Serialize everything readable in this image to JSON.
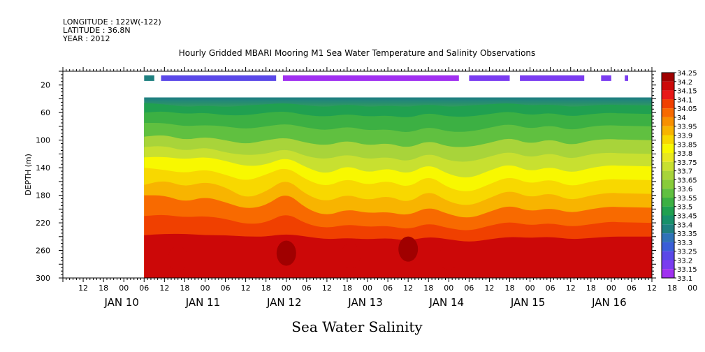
{
  "header": {
    "longitude": "LONGITUDE : 122W(-122)",
    "latitude": "LATITUDE : 36.8N",
    "year": "YEAR : 2012",
    "title": "Hourly Gridded MBARI Mooring M1 Sea Water Temperature and Salinity Observations"
  },
  "chart_data": {
    "type": "heatmap",
    "title": "Hourly Gridded MBARI Mooring M1 Sea Water Temperature and Salinity Observations",
    "xlabel": "Sea Water Salinity",
    "ylabel": "DEPTH (m)",
    "x_hour_ticks": [
      "12",
      "18",
      "00",
      "06",
      "12",
      "18",
      "00",
      "06",
      "12",
      "18",
      "00",
      "06",
      "12",
      "18",
      "00",
      "06",
      "12",
      "18",
      "00",
      "06",
      "12",
      "18",
      "00",
      "06",
      "12",
      "18",
      "00",
      "06",
      "12",
      "18",
      "00"
    ],
    "x_day_labels": [
      "JAN 10",
      "JAN 11",
      "JAN 12",
      "JAN 13",
      "JAN 14",
      "JAN 15",
      "JAN 16"
    ],
    "y_ticks": [
      20,
      60,
      100,
      140,
      180,
      220,
      260,
      300
    ],
    "ylim": [
      300,
      0
    ],
    "colorbar_levels": [
      "33.1",
      "33.15",
      "33.2",
      "33.25",
      "33.3",
      "33.35",
      "33.4",
      "33.45",
      "33.5",
      "33.55",
      "33.6",
      "33.65",
      "33.7",
      "33.75",
      "33.8",
      "33.85",
      "33.9",
      "33.95",
      "34",
      "34.05",
      "34.1",
      "34.15",
      "34.2",
      "34.25"
    ],
    "colorbar_colors": [
      "#e020e0",
      "#a030f0",
      "#7a3cf0",
      "#5a48e8",
      "#3a5ed8",
      "#2f72b8",
      "#1f8080",
      "#18906a",
      "#20a050",
      "#3cb043",
      "#60c040",
      "#88cc3a",
      "#a8d43a",
      "#c8e030",
      "#e8e820",
      "#f8f800",
      "#f8d800",
      "#f8b400",
      "#f89000",
      "#f86a00",
      "#f04000",
      "#e81818",
      "#cc0808",
      "#a00000"
    ],
    "surface_band": {
      "depth": 10,
      "segments": [
        {
          "start_hour": 30,
          "end_hour": 33,
          "value": 33.4
        },
        {
          "start_hour": 35,
          "end_hour": 69,
          "value": 33.25
        },
        {
          "start_hour": 71,
          "end_hour": 123,
          "value": 33.15
        },
        {
          "start_hour": 126,
          "end_hour": 138,
          "value": 33.2
        },
        {
          "start_hour": 141,
          "end_hour": 160,
          "value": 33.2
        },
        {
          "start_hour": 165,
          "end_hour": 168,
          "value": 33.2
        },
        {
          "start_hour": 172,
          "end_hour": 173,
          "value": 33.2
        }
      ]
    },
    "data_start_hour": 30,
    "data_top_depth": 38,
    "gradient_depth_profile": {
      "depth": [
        40,
        60,
        100,
        140,
        180,
        220,
        240,
        260,
        300
      ],
      "value": [
        33.4,
        33.55,
        33.75,
        33.85,
        33.95,
        34.1,
        34.15,
        34.15,
        34.1
      ]
    },
    "columns": [
      {
        "hour": 30,
        "d": [
          46,
          60,
          75,
          95,
          110,
          125,
          140,
          165,
          180,
          210,
          238
        ]
      },
      {
        "hour": 36,
        "d": [
          48,
          58,
          75,
          92,
          108,
          124,
          143,
          158,
          180,
          208,
          236
        ]
      },
      {
        "hour": 42,
        "d": [
          52,
          62,
          80,
          100,
          116,
          128,
          148,
          168,
          190,
          212,
          236
        ]
      },
      {
        "hour": 48,
        "d": [
          50,
          60,
          78,
          95,
          110,
          124,
          142,
          160,
          182,
          210,
          238
        ]
      },
      {
        "hour": 54,
        "d": [
          52,
          64,
          80,
          100,
          118,
          130,
          150,
          168,
          190,
          214,
          238
        ]
      },
      {
        "hour": 60,
        "d": [
          50,
          64,
          84,
          106,
          122,
          138,
          160,
          185,
          200,
          222,
          240
        ]
      },
      {
        "hour": 66,
        "d": [
          48,
          60,
          80,
          100,
          120,
          136,
          150,
          175,
          195,
          220,
          240
        ]
      },
      {
        "hour": 72,
        "d": [
          46,
          58,
          76,
          96,
          112,
          124,
          138,
          155,
          175,
          205,
          236
        ]
      },
      {
        "hour": 78,
        "d": [
          50,
          64,
          82,
          104,
          124,
          140,
          158,
          180,
          200,
          222,
          240
        ]
      },
      {
        "hour": 84,
        "d": [
          52,
          66,
          86,
          108,
          128,
          150,
          168,
          190,
          210,
          228,
          244
        ]
      },
      {
        "hour": 90,
        "d": [
          48,
          62,
          80,
          100,
          120,
          136,
          155,
          178,
          200,
          222,
          242
        ]
      },
      {
        "hour": 96,
        "d": [
          52,
          66,
          86,
          108,
          128,
          148,
          166,
          188,
          206,
          226,
          244
        ]
      },
      {
        "hour": 102,
        "d": [
          50,
          64,
          84,
          104,
          124,
          140,
          158,
          180,
          204,
          224,
          242
        ]
      },
      {
        "hour": 108,
        "d": [
          52,
          68,
          90,
          112,
          132,
          150,
          170,
          192,
          210,
          230,
          246
        ]
      },
      {
        "hour": 114,
        "d": [
          48,
          60,
          80,
          100,
          118,
          134,
          150,
          172,
          196,
          220,
          240
        ]
      },
      {
        "hour": 120,
        "d": [
          52,
          66,
          88,
          110,
          130,
          150,
          170,
          190,
          208,
          228,
          244
        ]
      },
      {
        "hour": 126,
        "d": [
          50,
          66,
          88,
          110,
          132,
          156,
          176,
          196,
          214,
          232,
          248
        ]
      },
      {
        "hour": 132,
        "d": [
          48,
          62,
          82,
          104,
          124,
          144,
          164,
          184,
          204,
          224,
          244
        ]
      },
      {
        "hour": 138,
        "d": [
          46,
          58,
          76,
          96,
          116,
          134,
          152,
          172,
          194,
          218,
          240
        ]
      },
      {
        "hour": 144,
        "d": [
          50,
          64,
          84,
          106,
          126,
          146,
          164,
          184,
          204,
          224,
          242
        ]
      },
      {
        "hour": 150,
        "d": [
          48,
          60,
          78,
          98,
          118,
          138,
          156,
          176,
          198,
          220,
          240
        ]
      },
      {
        "hour": 156,
        "d": [
          52,
          66,
          86,
          108,
          128,
          148,
          168,
          188,
          206,
          226,
          244
        ]
      },
      {
        "hour": 162,
        "d": [
          50,
          62,
          80,
          100,
          120,
          140,
          160,
          180,
          200,
          222,
          242
        ]
      },
      {
        "hour": 168,
        "d": [
          48,
          60,
          78,
          98,
          118,
          136,
          156,
          176,
          196,
          218,
          240
        ]
      },
      {
        "hour": 172,
        "d": [
          50,
          62,
          80,
          100,
          120,
          138,
          158,
          178,
          198,
          220,
          240
        ]
      }
    ],
    "deep_cores": [
      {
        "hour": 40,
        "depth": 272,
        "value": 34.2
      },
      {
        "hour": 54,
        "depth": 266,
        "value": 34.2
      },
      {
        "hour": 72,
        "depth": 264,
        "value": 34.25
      },
      {
        "hour": 91,
        "depth": 268,
        "value": 34.2
      },
      {
        "hour": 108,
        "depth": 258,
        "value": 34.25
      },
      {
        "hour": 120,
        "depth": 270,
        "value": 34.2
      },
      {
        "hour": 150,
        "depth": 272,
        "value": 34.2
      }
    ]
  }
}
